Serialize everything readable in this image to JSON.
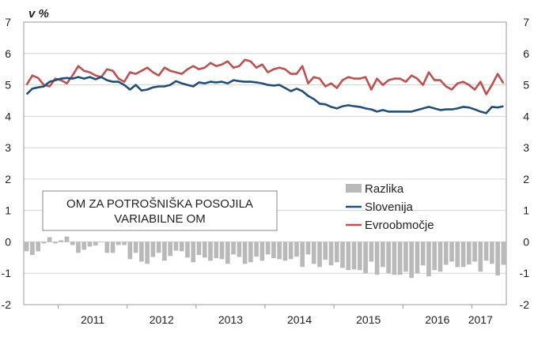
{
  "chart_data": {
    "type": "line",
    "unit_label": "v %",
    "ylim": [
      -2,
      7
    ],
    "yticks": [
      -2,
      -1,
      0,
      1,
      2,
      3,
      4,
      5,
      6,
      7
    ],
    "years": [
      "2011",
      "2012",
      "2013",
      "2014",
      "2015",
      "2016",
      "2017"
    ],
    "period": {
      "start": "2010-07",
      "end": "2017-03"
    },
    "annotation_lines": [
      "OM ZA POTROŠNIŠKA  POSOJILA",
      "VARIABILNE  OM"
    ],
    "colors": {
      "Razlika": "#b9b9b9",
      "Slovenija": "#1f4e79",
      "Evroobmočje": "#c0504d"
    },
    "series": [
      {
        "name": "Evroobmočje",
        "type": "line",
        "values": [
          5.0,
          5.3,
          5.22,
          5.0,
          4.95,
          5.2,
          5.15,
          5.05,
          5.3,
          5.6,
          5.45,
          5.4,
          5.3,
          5.25,
          5.5,
          5.45,
          5.2,
          5.1,
          5.4,
          5.35,
          5.45,
          5.55,
          5.4,
          5.3,
          5.55,
          5.45,
          5.4,
          5.35,
          5.5,
          5.6,
          5.5,
          5.55,
          5.7,
          5.6,
          5.65,
          5.75,
          5.55,
          5.6,
          5.8,
          5.75,
          5.55,
          5.65,
          5.4,
          5.5,
          5.55,
          5.5,
          5.35,
          5.35,
          5.6,
          5.05,
          5.25,
          5.2,
          4.95,
          5.05,
          4.9,
          5.15,
          5.25,
          5.2,
          5.2,
          5.25,
          4.85,
          5.2,
          5.0,
          5.15,
          5.2,
          5.2,
          5.1,
          5.3,
          5.2,
          5.0,
          5.4,
          5.15,
          5.15,
          4.95,
          4.85,
          5.05,
          5.1,
          5.0,
          4.85,
          5.1,
          4.7,
          5.0,
          5.35,
          5.05
        ]
      },
      {
        "name": "Slovenija",
        "type": "line",
        "values": [
          4.7,
          4.88,
          4.92,
          4.95,
          5.1,
          5.15,
          5.2,
          5.22,
          5.2,
          5.25,
          5.2,
          5.25,
          5.18,
          5.25,
          5.15,
          5.1,
          5.1,
          5.0,
          4.85,
          5.0,
          4.82,
          4.85,
          4.92,
          4.95,
          4.95,
          5.0,
          5.12,
          5.05,
          5.0,
          4.95,
          5.08,
          5.05,
          5.1,
          5.08,
          5.1,
          5.05,
          5.15,
          5.12,
          5.1,
          5.1,
          5.08,
          5.05,
          5.0,
          4.98,
          5.0,
          4.9,
          4.8,
          4.88,
          4.8,
          4.65,
          4.55,
          4.4,
          4.38,
          4.3,
          4.25,
          4.32,
          4.35,
          4.32,
          4.3,
          4.25,
          4.22,
          4.15,
          4.2,
          4.15,
          4.15,
          4.15,
          4.15,
          4.15,
          4.2,
          4.25,
          4.3,
          4.25,
          4.2,
          4.22,
          4.22,
          4.25,
          4.3,
          4.28,
          4.22,
          4.15,
          4.1,
          4.3,
          4.28,
          4.32
        ]
      },
      {
        "name": "Razlika",
        "type": "bar",
        "values": [
          -0.3,
          -0.42,
          -0.3,
          -0.05,
          0.15,
          -0.05,
          0.05,
          0.17,
          -0.1,
          -0.35,
          -0.25,
          -0.15,
          -0.12,
          0.0,
          -0.35,
          -0.35,
          -0.1,
          -0.1,
          -0.55,
          -0.35,
          -0.63,
          -0.7,
          -0.48,
          -0.35,
          -0.6,
          -0.45,
          -0.28,
          -0.3,
          -0.5,
          -0.65,
          -0.42,
          -0.5,
          -0.6,
          -0.52,
          -0.55,
          -0.7,
          -0.4,
          -0.48,
          -0.7,
          -0.65,
          -0.47,
          -0.6,
          -0.4,
          -0.52,
          -0.55,
          -0.6,
          -0.55,
          -0.47,
          -0.8,
          -0.4,
          -0.7,
          -0.8,
          -0.57,
          -0.75,
          -0.65,
          -0.83,
          -0.9,
          -0.88,
          -0.9,
          -1.0,
          -0.63,
          -1.05,
          -0.8,
          -1.0,
          -1.05,
          -1.05,
          -0.95,
          -1.15,
          -1.0,
          -0.75,
          -1.1,
          -0.9,
          -0.95,
          -0.73,
          -0.63,
          -0.8,
          -0.8,
          -0.72,
          -0.63,
          -0.95,
          -0.6,
          -0.7,
          -1.07,
          -0.73
        ]
      }
    ],
    "legend": [
      {
        "name": "Razlika",
        "symbol": "box"
      },
      {
        "name": "Slovenija",
        "symbol": "line"
      },
      {
        "name": "Evroobmočje",
        "symbol": "line"
      }
    ]
  }
}
